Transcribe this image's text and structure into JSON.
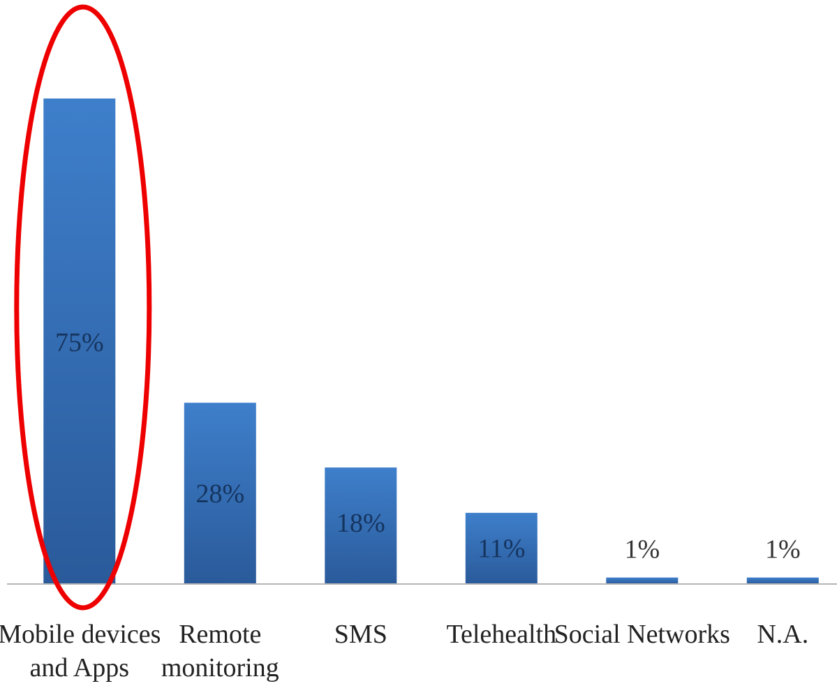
{
  "chart_data": {
    "type": "bar",
    "categories": [
      [
        "Mobile devices",
        "and Apps"
      ],
      [
        "Remote",
        "monitoring"
      ],
      [
        "SMS"
      ],
      [
        "Telehealth"
      ],
      [
        "Social Networks"
      ],
      [
        "N.A."
      ]
    ],
    "values": [
      75,
      28,
      18,
      11,
      1,
      1
    ],
    "value_labels": [
      "75%",
      "28%",
      "18%",
      "11%",
      "1%",
      "1%"
    ],
    "title": "",
    "xlabel": "",
    "ylabel": "",
    "ylim": [
      0,
      75
    ],
    "grid": false,
    "legend": "none",
    "highlighted_category_index": 0
  },
  "colors": {
    "bar_top": "#3e7fcb",
    "bar_bottom": "#2a5a9a",
    "bar_label_inside": "#15345e",
    "bar_label_outside": "#333333",
    "axis": "#b5b5b5",
    "highlight": "#ee0000"
  }
}
